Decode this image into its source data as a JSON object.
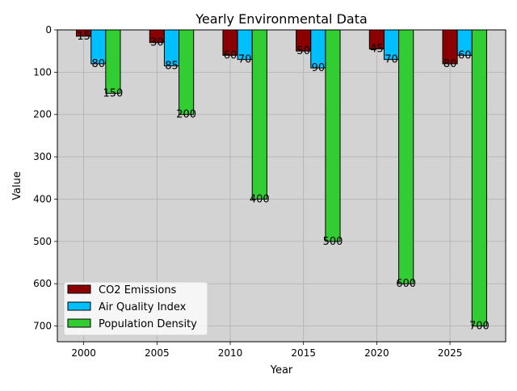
{
  "chart_data": {
    "type": "bar",
    "title": "Yearly Environmental Data",
    "xlabel": "Year",
    "ylabel": "Value",
    "y_inverted": true,
    "ylim": [
      737,
      0
    ],
    "xlim": [
      1998.2,
      2028.8
    ],
    "grid": true,
    "legend_position": "lower-left",
    "background_color": "#d3d3d3",
    "categories": [
      2000,
      2005,
      2010,
      2015,
      2020,
      2025
    ],
    "x_ticks": [
      2000,
      2005,
      2010,
      2015,
      2020,
      2025
    ],
    "y_ticks": [
      0,
      100,
      200,
      300,
      400,
      500,
      600,
      700
    ],
    "series": [
      {
        "name": "CO2 Emissions",
        "color": "#8b0000",
        "values": [
          15,
          30,
          60,
          50,
          45,
          80
        ]
      },
      {
        "name": "Air Quality Index",
        "color": "#00bfff",
        "values": [
          80,
          85,
          70,
          90,
          70,
          60
        ]
      },
      {
        "name": "Population Density",
        "color": "#32cd32",
        "values": [
          150,
          200,
          400,
          500,
          600,
          700
        ]
      }
    ]
  }
}
